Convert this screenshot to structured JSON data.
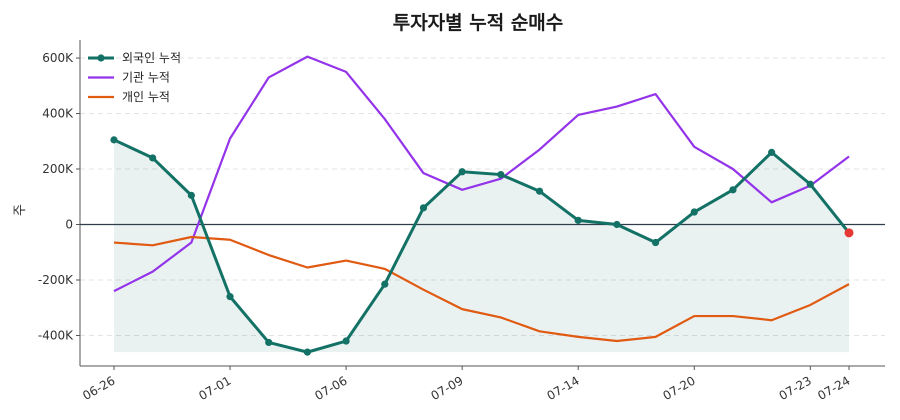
{
  "chart_data": {
    "type": "line",
    "title": "투자자별 누적 순매수",
    "xlabel": "",
    "ylabel": "주",
    "x": [
      "06-26",
      "06-27",
      "06-28",
      "07-01",
      "07-02",
      "07-03",
      "07-06",
      "07-07",
      "07-08",
      "07-09",
      "07-10",
      "07-13",
      "07-14",
      "07-15",
      "07-16",
      "07-20",
      "07-21",
      "07-22",
      "07-23",
      "07-24"
    ],
    "xticks": [
      "06-26",
      "07-01",
      "07-06",
      "07-09",
      "07-14",
      "07-20",
      "07-23",
      "07-24"
    ],
    "yticks": [
      600000,
      400000,
      200000,
      0,
      -200000,
      -400000
    ],
    "ytick_labels": [
      "600K",
      "400K",
      "200K",
      "0",
      "-200K",
      "-400K"
    ],
    "ylim": [
      -510000,
      665000
    ],
    "grid": "horizontal dashed",
    "zero_line": true,
    "legend_position": "top-left",
    "series": [
      {
        "name": "외국인 누적",
        "color": "#137166",
        "markers": true,
        "fill": true,
        "values": [
          305000,
          240000,
          105000,
          -260000,
          -425000,
          -460000,
          -420000,
          -215000,
          60000,
          190000,
          180000,
          120000,
          15000,
          0,
          -65000,
          45000,
          125000,
          260000,
          145000,
          -30000
        ]
      },
      {
        "name": "기관 누적",
        "color": "#9333ea",
        "markers": false,
        "values": [
          -240000,
          -170000,
          -65000,
          310000,
          530000,
          605000,
          550000,
          380000,
          185000,
          125000,
          165000,
          270000,
          395000,
          425000,
          470000,
          280000,
          200000,
          80000,
          140000,
          245000
        ]
      },
      {
        "name": "개인 누적",
        "color": "#e05a12",
        "markers": false,
        "values": [
          -65000,
          -75000,
          -45000,
          -55000,
          -110000,
          -155000,
          -130000,
          -160000,
          -235000,
          -305000,
          -335000,
          -385000,
          -405000,
          -420000,
          -405000,
          -330000,
          -330000,
          -345000,
          -290000,
          -215000
        ]
      }
    ],
    "highlight_last_point_color": "#e53935"
  }
}
